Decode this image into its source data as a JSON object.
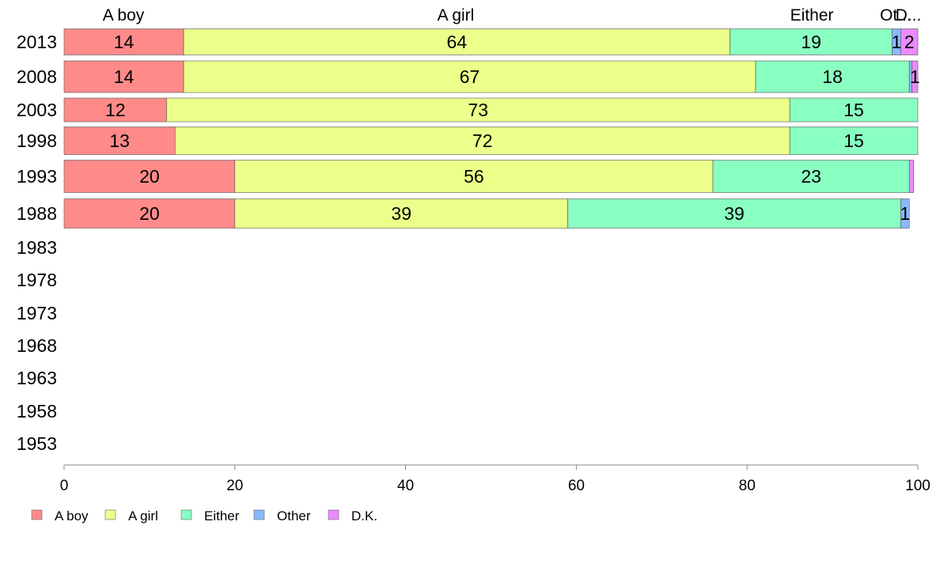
{
  "chart_data": {
    "type": "bar",
    "orientation": "horizontal",
    "stacked": true,
    "title": "",
    "xlabel": "",
    "ylabel": "",
    "xlim": [
      0,
      100
    ],
    "x_ticks": [
      0,
      20,
      40,
      60,
      80,
      100
    ],
    "grid": false,
    "legend_position": "bottom-left",
    "categories": [
      "2013",
      "2008",
      "2003",
      "1998",
      "1993",
      "1988",
      "1983",
      "1978",
      "1973",
      "1968",
      "1963",
      "1958",
      "1953"
    ],
    "top_labels": [
      "A boy",
      "A girl",
      "Either",
      "Ot...",
      "D..."
    ],
    "series": [
      {
        "name": "A boy",
        "color": "#FF8A8A",
        "values": [
          14,
          14,
          12,
          13,
          20,
          20,
          null,
          null,
          null,
          null,
          null,
          null,
          null
        ]
      },
      {
        "name": "A girl",
        "color": "#EBFF8A",
        "values": [
          64,
          67,
          73,
          72,
          56,
          39,
          null,
          null,
          null,
          null,
          null,
          null,
          null
        ]
      },
      {
        "name": "Either",
        "color": "#8AFFC2",
        "values": [
          19,
          18,
          15,
          15,
          23,
          39,
          null,
          null,
          null,
          null,
          null,
          null,
          null
        ]
      },
      {
        "name": "Other",
        "color": "#8AB8FF",
        "values": [
          1,
          0.3,
          0,
          0,
          0,
          1,
          null,
          null,
          null,
          null,
          null,
          null,
          null
        ]
      },
      {
        "name": "D.K.",
        "color": "#EB8AFF",
        "values": [
          2,
          1,
          0,
          0,
          0.5,
          0,
          null,
          null,
          null,
          null,
          null,
          null,
          null
        ]
      }
    ],
    "data_labels": [
      [
        "14",
        "64",
        "19",
        "1",
        "2"
      ],
      [
        "14",
        "67",
        "18",
        "",
        "1"
      ],
      [
        "12",
        "73",
        "15",
        "",
        ""
      ],
      [
        "13",
        "72",
        "15",
        "",
        ""
      ],
      [
        "20",
        "56",
        "23",
        "",
        ""
      ],
      [
        "20",
        "39",
        "39",
        "1",
        ""
      ],
      [],
      [],
      [],
      [],
      [],
      [],
      []
    ]
  }
}
